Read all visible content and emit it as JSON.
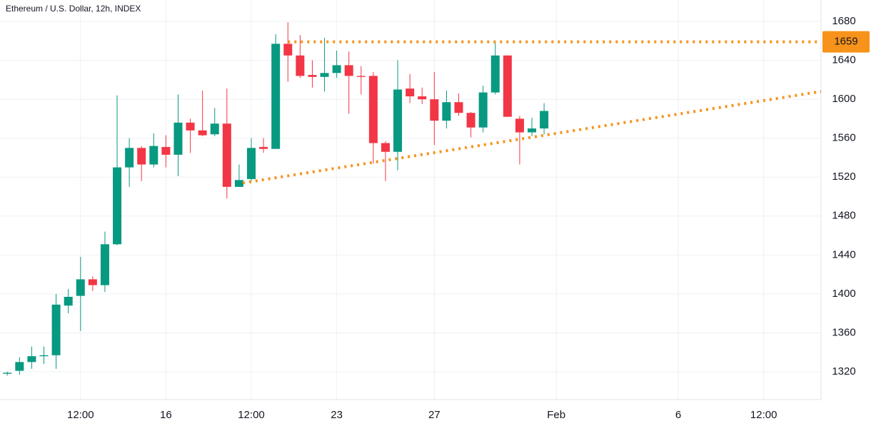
{
  "chart_data": {
    "type": "candlestick",
    "title": "Ethereum / U.S. Dollar, 12h, INDEX",
    "open": [
      1318,
      1321,
      1330,
      1336,
      1337,
      1388,
      1398,
      1415,
      1409,
      1451,
      1530,
      1550,
      1533,
      1551,
      1543,
      1576,
      1568,
      1564,
      1575,
      1510,
      1518,
      1551,
      1549,
      1657,
      1645,
      1625,
      1623,
      1627,
      1635,
      1624,
      1624,
      1555,
      1546,
      1611,
      1603,
      1600,
      1578,
      1597,
      1586,
      1571,
      1607,
      1645,
      1580,
      1566,
      1570
    ],
    "high": [
      1320,
      1335,
      1346,
      1346,
      1400,
      1405,
      1438,
      1418,
      1464,
      1604,
      1560,
      1552,
      1565,
      1563,
      1605,
      1580,
      1609,
      1591,
      1611,
      1533,
      1560,
      1560,
      1667,
      1679,
      1666,
      1640,
      1663,
      1650,
      1649,
      1634,
      1628,
      1557,
      1640,
      1626,
      1612,
      1628,
      1609,
      1606,
      1587,
      1614,
      1660,
      1645,
      1583,
      1581,
      1596
    ],
    "low": [
      1316,
      1317,
      1323,
      1328,
      1323,
      1380,
      1362,
      1403,
      1402,
      1450,
      1510,
      1516,
      1530,
      1530,
      1521,
      1545,
      1562,
      1562,
      1498,
      1510,
      1516,
      1545,
      1549,
      1618,
      1622,
      1612,
      1608,
      1622,
      1585,
      1605,
      1534,
      1516,
      1527,
      1596,
      1595,
      1553,
      1570,
      1583,
      1561,
      1566,
      1605,
      1582,
      1533,
      1562,
      1564
    ],
    "close": [
      1319,
      1330,
      1336,
      1337,
      1389,
      1397,
      1415,
      1409,
      1451,
      1530,
      1550,
      1533,
      1552,
      1543,
      1576,
      1568,
      1563,
      1575,
      1510,
      1517,
      1550,
      1549,
      1657,
      1645,
      1624,
      1623,
      1627,
      1635,
      1624,
      1623,
      1555,
      1546,
      1610,
      1603,
      1600,
      1578,
      1597,
      1586,
      1571,
      1607,
      1645,
      1582,
      1566,
      1570,
      1588
    ],
    "up_color": "#089981",
    "down_color": "#f23645",
    "xlim": [
      -0.6,
      66.7
    ],
    "xticks": [
      {
        "value": 6,
        "label": "12:00"
      },
      {
        "value": 13,
        "label": "16"
      },
      {
        "value": 20,
        "label": "12:00"
      },
      {
        "value": 27,
        "label": "23"
      },
      {
        "value": 35,
        "label": "27"
      },
      {
        "value": 45,
        "label": "Feb"
      },
      {
        "value": 55,
        "label": "6"
      },
      {
        "value": 62,
        "label": "12:00"
      }
    ],
    "ylim": [
      1291.4,
      1702
    ],
    "yticks": [
      1320,
      1360,
      1400,
      1440,
      1480,
      1520,
      1560,
      1600,
      1640,
      1680
    ],
    "grid": true,
    "level": {
      "value": 1659,
      "x_start": 23,
      "color": "#f7931a"
    },
    "trendline": {
      "x": [
        19.3,
        66.7
      ],
      "y": [
        1514,
        1608
      ],
      "color": "#f7931a"
    }
  }
}
